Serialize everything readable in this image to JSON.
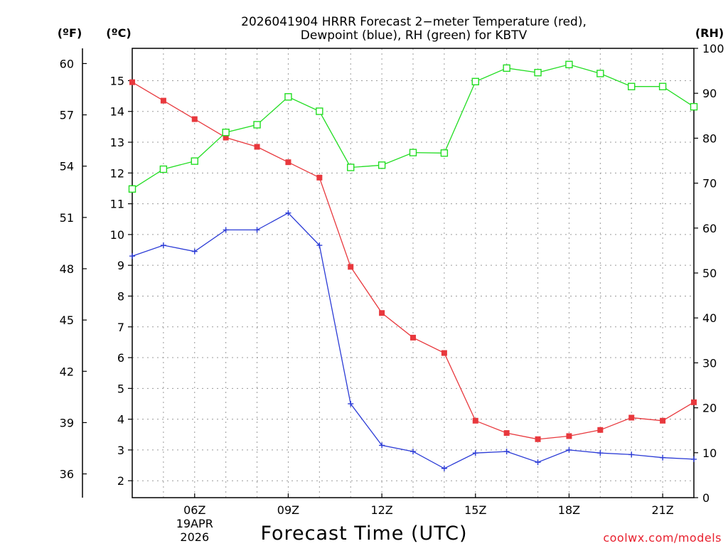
{
  "chart_data": {
    "type": "line",
    "title": [
      "2026041904 HRRR Forecast 2−meter Temperature (red),",
      "Dewpoint (blue), RH (green) for KBTV"
    ],
    "xlabel": "Forecast Time (UTC)",
    "credit": "coolwx.com/models",
    "units": {
      "fahrenheit": "(ºF)",
      "celsius": "(ºC)",
      "rh": "(RH)"
    },
    "x_hours": [
      4,
      5,
      6,
      7,
      8,
      9,
      10,
      11,
      12,
      13,
      14,
      15,
      16,
      17,
      18,
      19,
      20,
      21,
      22
    ],
    "xlim": [
      4,
      22
    ],
    "x_ticks": [
      {
        "hour": 6,
        "label": "06Z",
        "date_line1": "19APR",
        "date_line2": "2026"
      },
      {
        "hour": 9,
        "label": "09Z"
      },
      {
        "hour": 12,
        "label": "12Z"
      },
      {
        "hour": 15,
        "label": "15Z"
      },
      {
        "hour": 18,
        "label": "18Z"
      },
      {
        "hour": 21,
        "label": "21Z"
      }
    ],
    "y_celsius": {
      "lim": [
        1.45,
        16.05
      ],
      "ticks": [
        2,
        3,
        4,
        5,
        6,
        7,
        8,
        9,
        10,
        11,
        12,
        13,
        14,
        15
      ]
    },
    "y_fahrenheit": {
      "lim": [
        34.61,
        60.89
      ],
      "ticks": [
        36,
        39,
        42,
        45,
        48,
        51,
        54,
        57,
        60
      ]
    },
    "y_rh": {
      "lim": [
        0,
        100
      ],
      "ticks": [
        0,
        10,
        20,
        30,
        40,
        50,
        60,
        70,
        80,
        90,
        100
      ]
    },
    "series": [
      {
        "name": "Temperature",
        "axis": "celsius",
        "color": "#e8383d",
        "marker": "filled-square",
        "values": [
          14.95,
          14.35,
          13.75,
          13.15,
          12.85,
          12.35,
          11.85,
          8.95,
          7.45,
          6.65,
          6.15,
          3.95,
          3.55,
          3.35,
          3.45,
          3.65,
          4.05,
          3.95,
          4.55
        ]
      },
      {
        "name": "Dewpoint",
        "axis": "celsius",
        "color": "#2b3bd6",
        "marker": "plus",
        "values": [
          9.3,
          9.65,
          9.45,
          10.15,
          10.15,
          10.7,
          9.65,
          4.5,
          3.15,
          2.95,
          2.4,
          2.9,
          2.95,
          2.6,
          3.0,
          2.9,
          2.85,
          2.75,
          2.7
        ]
      },
      {
        "name": "RH",
        "axis": "rh",
        "color": "#22dd22",
        "marker": "open-square",
        "values": [
          68.7,
          73.1,
          74.9,
          81.3,
          83.0,
          89.2,
          86.0,
          73.5,
          74.0,
          76.8,
          76.7,
          92.6,
          95.6,
          94.6,
          96.4,
          94.4,
          91.5,
          91.5,
          87.0
        ]
      }
    ],
    "grid": true
  }
}
